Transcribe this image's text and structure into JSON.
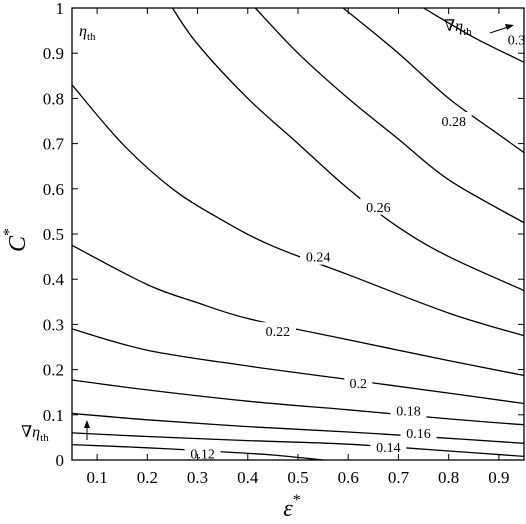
{
  "chart_data": {
    "type": "contour",
    "title": "",
    "xlabel": "ε",
    "xlabel_sup": "*",
    "ylabel": "C",
    "ylabel_sup": "*",
    "xlim": [
      0.05,
      0.95
    ],
    "ylim": [
      0,
      1
    ],
    "xticks": [
      0.1,
      0.2,
      0.3,
      0.4,
      0.5,
      0.6,
      0.7,
      0.8,
      0.9
    ],
    "yticks": [
      0,
      0.1,
      0.2,
      0.3,
      0.4,
      0.5,
      0.6,
      0.7,
      0.8,
      0.9,
      1
    ],
    "grid": false,
    "field_label": "η",
    "field_label_sub": "th",
    "annotations": [
      {
        "symbol": "∇η",
        "sub": "th",
        "location": "top-right"
      },
      {
        "symbol": "∇η",
        "sub": "th",
        "location": "bottom-left"
      }
    ],
    "contours": [
      {
        "level": "0.12",
        "points": [
          [
            0.05,
            0.034
          ],
          [
            0.2,
            0.027
          ],
          [
            0.35,
            0.018
          ],
          [
            0.45,
            0.011
          ],
          [
            0.55,
            0.0
          ]
        ]
      },
      {
        "level": "0.14",
        "points": [
          [
            0.05,
            0.06
          ],
          [
            0.2,
            0.052
          ],
          [
            0.4,
            0.043
          ],
          [
            0.6,
            0.035
          ],
          [
            0.8,
            0.02
          ],
          [
            0.95,
            0.008
          ]
        ]
      },
      {
        "level": "0.16",
        "points": [
          [
            0.05,
            0.103
          ],
          [
            0.2,
            0.089
          ],
          [
            0.4,
            0.074
          ],
          [
            0.6,
            0.062
          ],
          [
            0.8,
            0.048
          ],
          [
            0.95,
            0.037
          ]
        ]
      },
      {
        "level": "0.18",
        "points": [
          [
            0.05,
            0.177
          ],
          [
            0.2,
            0.155
          ],
          [
            0.4,
            0.13
          ],
          [
            0.6,
            0.111
          ],
          [
            0.8,
            0.091
          ],
          [
            0.95,
            0.078
          ]
        ]
      },
      {
        "level": "0.2",
        "points": [
          [
            0.05,
            0.29
          ],
          [
            0.2,
            0.243
          ],
          [
            0.4,
            0.208
          ],
          [
            0.6,
            0.178
          ],
          [
            0.8,
            0.148
          ],
          [
            0.95,
            0.125
          ]
        ]
      },
      {
        "level": "0.22",
        "points": [
          [
            0.05,
            0.475
          ],
          [
            0.2,
            0.388
          ],
          [
            0.3,
            0.348
          ],
          [
            0.4,
            0.313
          ],
          [
            0.6,
            0.266
          ],
          [
            0.8,
            0.22
          ],
          [
            0.95,
            0.187
          ]
        ]
      },
      {
        "level": "0.24",
        "points": [
          [
            0.05,
            0.83
          ],
          [
            0.15,
            0.7
          ],
          [
            0.25,
            0.6
          ],
          [
            0.35,
            0.53
          ],
          [
            0.45,
            0.473
          ],
          [
            0.6,
            0.41
          ],
          [
            0.8,
            0.325
          ],
          [
            0.95,
            0.275
          ]
        ]
      },
      {
        "level": "0.26",
        "points": [
          [
            0.25,
            1.0
          ],
          [
            0.3,
            0.92
          ],
          [
            0.4,
            0.8
          ],
          [
            0.5,
            0.7
          ],
          [
            0.6,
            0.6
          ],
          [
            0.7,
            0.515
          ],
          [
            0.8,
            0.45
          ],
          [
            0.95,
            0.375
          ]
        ]
      },
      {
        "level": "0.28",
        "points": [
          [
            0.415,
            1.0
          ],
          [
            0.5,
            0.9
          ],
          [
            0.6,
            0.8
          ],
          [
            0.7,
            0.71
          ],
          [
            0.8,
            0.62
          ],
          [
            0.95,
            0.525
          ]
        ]
      },
      {
        "level": "0.3",
        "points": [
          [
            0.59,
            1.0
          ],
          [
            0.7,
            0.9
          ],
          [
            0.8,
            0.8
          ],
          [
            0.9,
            0.72
          ],
          [
            0.95,
            0.68
          ]
        ]
      },
      {
        "level": "",
        "points": [
          [
            0.75,
            1.0
          ],
          [
            0.85,
            0.935
          ],
          [
            0.95,
            0.88
          ]
        ]
      }
    ],
    "contour_labels": [
      {
        "text": "0.12",
        "x": 0.31,
        "y": 0.014
      },
      {
        "text": "0.14",
        "x": 0.68,
        "y": 0.029
      },
      {
        "text": "0.16",
        "x": 0.74,
        "y": 0.06
      },
      {
        "text": "0.18",
        "x": 0.72,
        "y": 0.11
      },
      {
        "text": "0.2",
        "x": 0.62,
        "y": 0.17
      },
      {
        "text": "0.22",
        "x": 0.46,
        "y": 0.285
      },
      {
        "text": "0.24",
        "x": 0.54,
        "y": 0.45
      },
      {
        "text": "0.26",
        "x": 0.66,
        "y": 0.56
      },
      {
        "text": "0.28",
        "x": 0.81,
        "y": 0.75
      },
      {
        "text": "0.3",
        "x": 0.935,
        "y": 0.93
      }
    ]
  }
}
